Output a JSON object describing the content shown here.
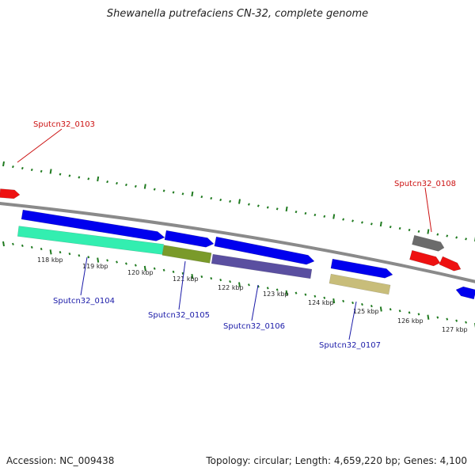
{
  "title": "Shewanella putrefaciens CN-32, complete genome",
  "footer": {
    "accession": "Accession: NC_009438",
    "summary": "Topology: circular; Length: 4,659,220 bp; Genes: 4,100"
  },
  "colors": {
    "backbone": "#8a8a8a",
    "tick": "#1f7a1f",
    "forward_gene": "#0000ee",
    "red_gene": "#ee1111",
    "gray_gene": "#6b6b6b",
    "cyan_feature": "#33eeb0",
    "olive_feature": "#7a9a2a",
    "purple_feature": "#5a4fa0",
    "khaki_feature": "#c8bd7a",
    "label_blue": "#1a1aa8",
    "label_red": "#cc1111"
  },
  "scale_labels": [
    "118 kbp",
    "119 kbp",
    "120 kbp",
    "121 kbp",
    "122 kbp",
    "123 kbp",
    "124 kbp",
    "125 kbp",
    "126 kbp",
    "127 kbp"
  ],
  "gene_labels": [
    {
      "text": "Sputcn32_0103",
      "color": "red"
    },
    {
      "text": "Sputcn32_0104",
      "color": "blue"
    },
    {
      "text": "Sputcn32_0105",
      "color": "blue"
    },
    {
      "text": "Sputcn32_0106",
      "color": "blue"
    },
    {
      "text": "Sputcn32_0107",
      "color": "blue"
    },
    {
      "text": "Sputcn32_0108",
      "color": "red"
    }
  ]
}
